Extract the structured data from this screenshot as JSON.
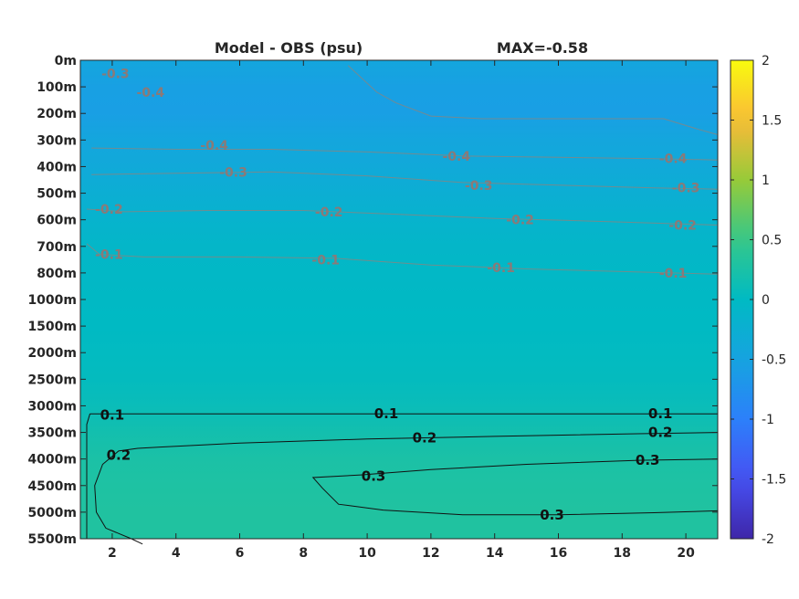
{
  "chart_data": {
    "type": "heatmap",
    "title_left": "Model - OBS (psu)",
    "title_right": "MAX=-0.58",
    "xlabel": "",
    "ylabel": "",
    "x_ticks": [
      "2",
      "4",
      "6",
      "8",
      "10",
      "12",
      "14",
      "16",
      "18",
      "20"
    ],
    "xlim": [
      1,
      21
    ],
    "y_ticks": [
      "0m",
      "100m",
      "200m",
      "300m",
      "400m",
      "500m",
      "600m",
      "700m",
      "800m",
      "1000m",
      "1500m",
      "2000m",
      "2500m",
      "3000m",
      "3500m",
      "4000m",
      "4500m",
      "5000m",
      "5500m"
    ],
    "colorbar": {
      "ticks": [
        "2",
        "1.5",
        "1",
        "0.5",
        "0",
        "-0.5",
        "-1",
        "-1.5",
        "-2"
      ],
      "clim": [
        -2,
        2
      ],
      "colormap": "parula"
    },
    "color_field_rows": [
      [
        0,
        0,
        -0.45
      ],
      [
        1,
        0,
        -0.55
      ],
      [
        2,
        0,
        -0.57
      ],
      [
        3,
        0,
        -0.45
      ],
      [
        4,
        0,
        -0.38
      ],
      [
        5,
        0,
        -0.28
      ],
      [
        6,
        0,
        -0.17
      ],
      [
        7,
        0,
        -0.08
      ],
      [
        8,
        0,
        -0.05
      ],
      [
        9,
        0,
        -0.02
      ],
      [
        10,
        0,
        0.0
      ],
      [
        11,
        0,
        0.02
      ],
      [
        12,
        0,
        0.04
      ],
      [
        13,
        0,
        0.09
      ],
      [
        14,
        0,
        0.18
      ],
      [
        15,
        0,
        0.25
      ],
      [
        16,
        0,
        0.28
      ],
      [
        17,
        0,
        0.3
      ],
      [
        18,
        0,
        0.3
      ]
    ],
    "contour_labels_grey": [
      {
        "text": "-0.3",
        "x": 2.1,
        "y": 0.5
      },
      {
        "text": "-0.4",
        "x": 3.2,
        "y": 1.2
      },
      {
        "text": "-0.4",
        "x": 5.2,
        "y": 3.2
      },
      {
        "text": "-0.4",
        "x": 12.8,
        "y": 3.6
      },
      {
        "text": "-0.4",
        "x": 19.6,
        "y": 3.7
      },
      {
        "text": "-0.3",
        "x": 5.8,
        "y": 4.2
      },
      {
        "text": "-0.3",
        "x": 13.5,
        "y": 4.7
      },
      {
        "text": "-0.3",
        "x": 20.0,
        "y": 4.8
      },
      {
        "text": "-0.2",
        "x": 1.9,
        "y": 5.6
      },
      {
        "text": "-0.2",
        "x": 8.8,
        "y": 5.7
      },
      {
        "text": "-0.2",
        "x": 14.8,
        "y": 6.0
      },
      {
        "text": "-0.2",
        "x": 19.9,
        "y": 6.2
      },
      {
        "text": "-0.1",
        "x": 1.9,
        "y": 7.3
      },
      {
        "text": "-0.1",
        "x": 8.7,
        "y": 7.5
      },
      {
        "text": "-0.1",
        "x": 14.2,
        "y": 7.8
      },
      {
        "text": "-0.1",
        "x": 19.6,
        "y": 8.0
      }
    ],
    "contours_black": [
      {
        "level": "0.1",
        "points": [
          [
            21,
            13.3
          ],
          [
            1.3,
            13.3
          ]
        ],
        "labels": [
          {
            "text": "0.1",
            "x": 2.0,
            "y": 13.35
          },
          {
            "text": "0.1",
            "x": 10.6,
            "y": 13.3
          },
          {
            "text": "0.1",
            "x": 19.2,
            "y": 13.3
          }
        ]
      },
      {
        "level": "0.2",
        "points": [
          [
            21,
            14.0
          ],
          [
            18.5,
            14.05
          ],
          [
            14,
            14.15
          ],
          [
            10,
            14.25
          ],
          [
            6,
            14.4
          ],
          [
            3.5,
            14.55
          ],
          [
            2.8,
            14.6
          ],
          [
            2.2,
            14.7
          ],
          [
            1.7,
            15.2
          ],
          [
            1.45,
            16.0
          ],
          [
            1.5,
            17.0
          ],
          [
            1.8,
            17.6
          ],
          [
            2.6,
            18.0
          ],
          [
            2.95,
            18.2
          ]
        ],
        "labels": [
          {
            "text": "0.2",
            "x": 2.2,
            "y": 14.85
          },
          {
            "text": "0.2",
            "x": 11.8,
            "y": 14.2
          },
          {
            "text": "0.2",
            "x": 19.2,
            "y": 14.0
          }
        ]
      },
      {
        "level": "0.3",
        "points": [
          [
            21,
            15.0
          ],
          [
            18.5,
            15.05
          ],
          [
            15,
            15.2
          ],
          [
            12,
            15.4
          ],
          [
            9.8,
            15.6
          ],
          [
            8.3,
            15.7
          ],
          [
            8.6,
            16.1
          ],
          [
            9.1,
            16.7
          ],
          [
            10.5,
            16.92
          ],
          [
            13,
            17.1
          ],
          [
            16,
            17.1
          ],
          [
            19,
            17.02
          ],
          [
            21,
            16.95
          ]
        ],
        "labels": [
          {
            "text": "0.3",
            "x": 10.2,
            "y": 15.65
          },
          {
            "text": "0.3",
            "x": 18.8,
            "y": 15.05
          },
          {
            "text": "0.3",
            "x": 15.8,
            "y": 17.1
          }
        ]
      },
      {
        "level": "0.1",
        "points": [
          [
            1.3,
            13.3
          ],
          [
            1.2,
            13.7
          ],
          [
            1.2,
            18.0
          ]
        ],
        "labels": []
      }
    ],
    "contours_grey": [
      {
        "level": "-0.4",
        "points": [
          [
            1.35,
            3.3
          ],
          [
            4,
            3.35
          ],
          [
            7,
            3.35
          ],
          [
            10,
            3.45
          ],
          [
            13,
            3.6
          ],
          [
            16,
            3.65
          ],
          [
            19,
            3.7
          ],
          [
            21,
            3.75
          ]
        ]
      },
      {
        "level": "-0.3",
        "points": [
          [
            1.35,
            4.3
          ],
          [
            4,
            4.25
          ],
          [
            7,
            4.2
          ],
          [
            10,
            4.35
          ],
          [
            13,
            4.6
          ],
          [
            16,
            4.7
          ],
          [
            19,
            4.8
          ],
          [
            21,
            4.85
          ]
        ]
      },
      {
        "level": "-0.2",
        "points": [
          [
            1.2,
            5.6
          ],
          [
            2.4,
            5.7
          ],
          [
            5,
            5.65
          ],
          [
            8,
            5.65
          ],
          [
            11,
            5.8
          ],
          [
            14,
            5.95
          ],
          [
            17,
            6.05
          ],
          [
            21,
            6.2
          ]
        ]
      },
      {
        "level": "-0.1",
        "points": [
          [
            1.2,
            6.9
          ],
          [
            1.6,
            7.3
          ],
          [
            3,
            7.4
          ],
          [
            6,
            7.4
          ],
          [
            9,
            7.45
          ],
          [
            12,
            7.7
          ],
          [
            15,
            7.85
          ],
          [
            18,
            7.95
          ],
          [
            21,
            8.05
          ]
        ]
      },
      {
        "level": "-0.5",
        "points": [
          [
            9.4,
            0.2
          ],
          [
            10.3,
            1.2
          ],
          [
            10.9,
            1.6
          ],
          [
            12.0,
            2.1
          ],
          [
            13.6,
            2.2
          ],
          [
            15.5,
            2.2
          ],
          [
            17.4,
            2.2
          ],
          [
            19.3,
            2.2
          ],
          [
            20.4,
            2.6
          ],
          [
            21,
            2.8
          ]
        ]
      }
    ]
  }
}
